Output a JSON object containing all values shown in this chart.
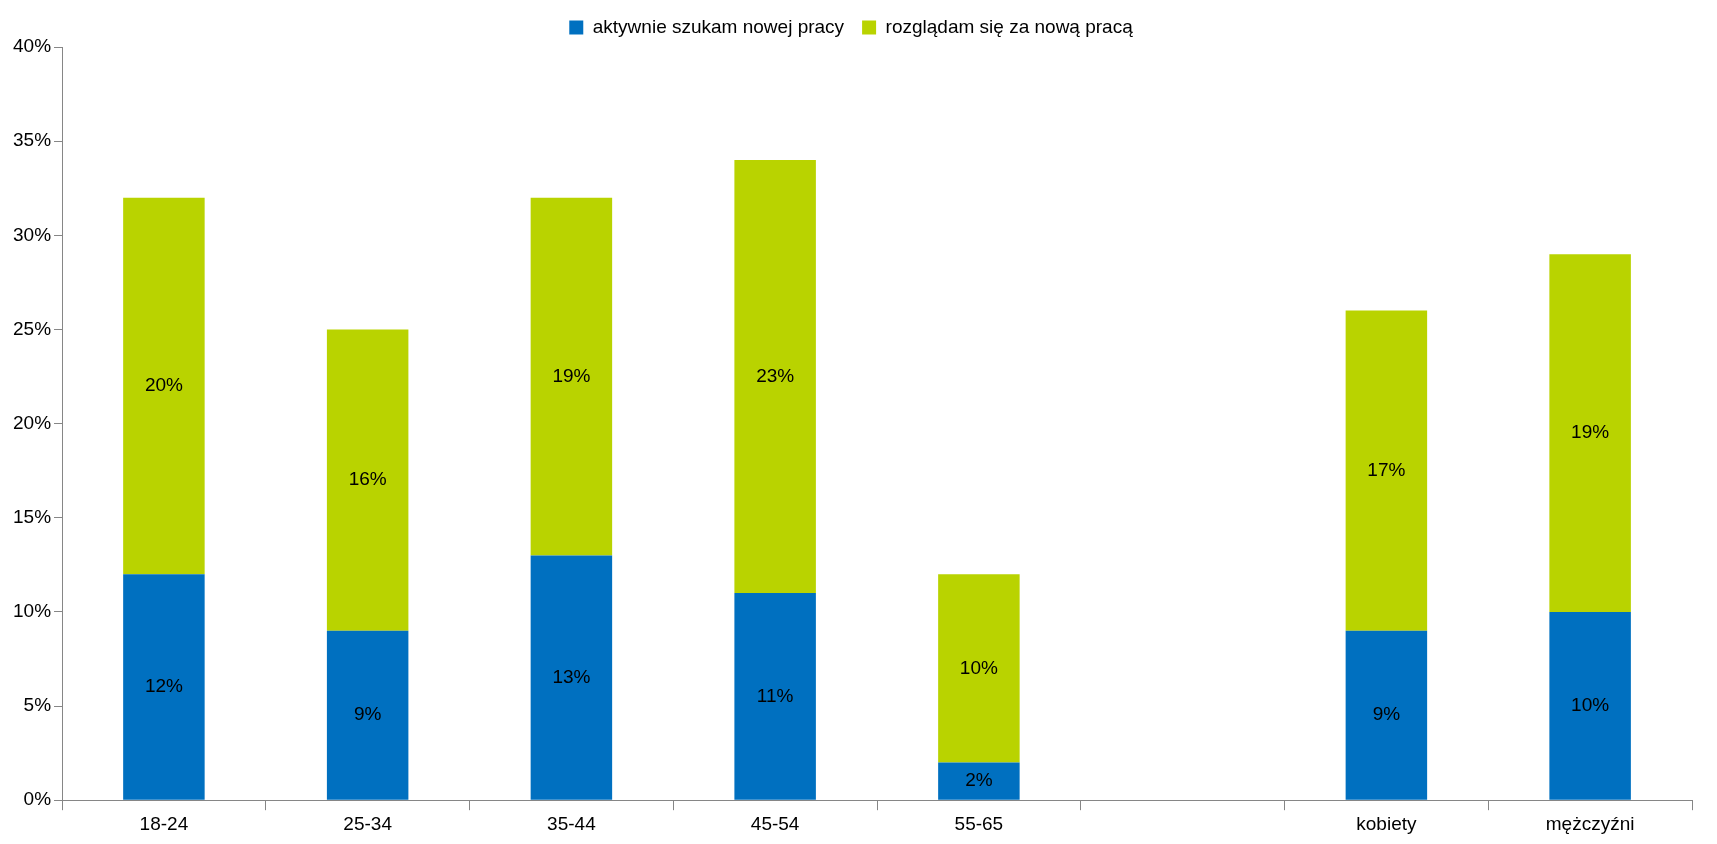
{
  "chart_data": {
    "type": "bar",
    "stacked": true,
    "legend": "top",
    "grid": false,
    "categories": [
      "18-24",
      "25-34",
      "35-44",
      "45-54",
      "55-65",
      null,
      "kobiety",
      "mężczyźni"
    ],
    "series": [
      {
        "name": "aktywnie szukam nowej pracy",
        "color": "#0070c0",
        "values": [
          12,
          9,
          13,
          11,
          2,
          null,
          9,
          10
        ],
        "value_labels": [
          "12%",
          "9%",
          "13%",
          "11%",
          "2%",
          null,
          "9%",
          "10%"
        ]
      },
      {
        "name": "rozglądam się za nową pracą",
        "color": "#b9d300",
        "values": [
          20,
          16,
          19,
          23,
          10,
          null,
          17,
          19
        ],
        "value_labels": [
          "20%",
          "16%",
          "19%",
          "23%",
          "10%",
          null,
          "17%",
          "19%"
        ]
      }
    ],
    "ylim": [
      0,
      40
    ],
    "yticks": [
      {
        "value": 0,
        "label": "0%"
      },
      {
        "value": 5,
        "label": "5%"
      },
      {
        "value": 10,
        "label": "10%"
      },
      {
        "value": 15,
        "label": "15%"
      },
      {
        "value": 20,
        "label": "20%"
      },
      {
        "value": 25,
        "label": "25%"
      },
      {
        "value": 30,
        "label": "30%"
      },
      {
        "value": 35,
        "label": "35%"
      },
      {
        "value": 40,
        "label": "40%"
      }
    ]
  }
}
